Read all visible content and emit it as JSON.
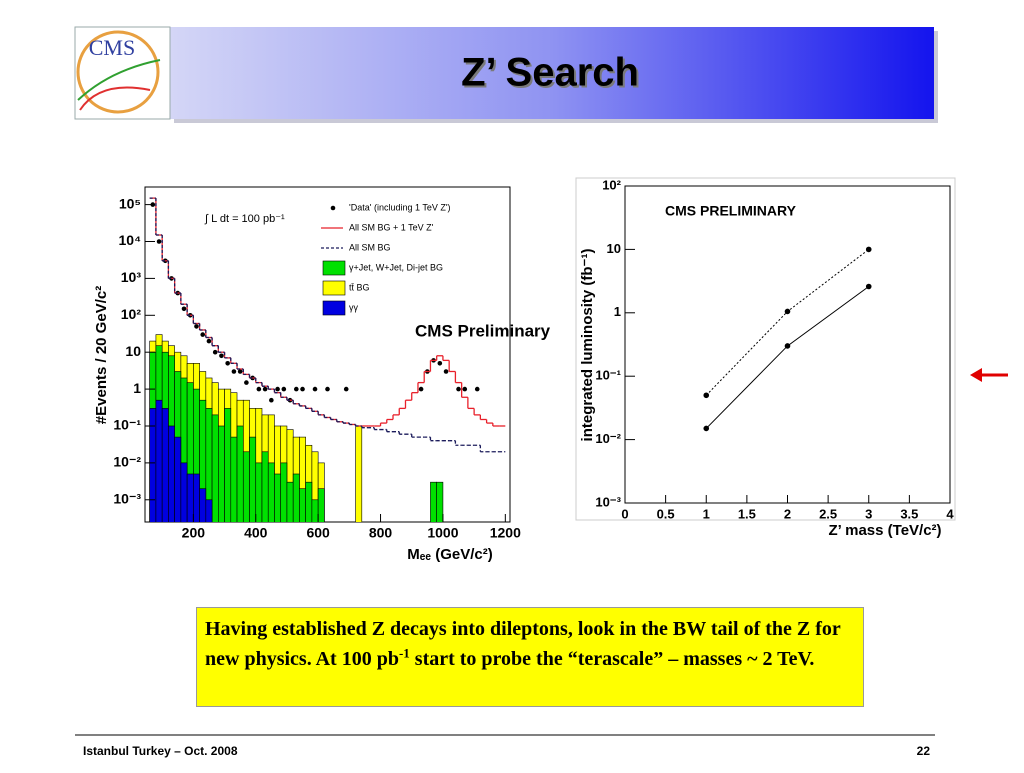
{
  "slide": {
    "title": "Z’ Search",
    "logo_text": "CMS",
    "text": {
      "before": "Having established Z decays into dileptons, look in the BW tail of the Z for new physics. At 100 pb",
      "sup": "-1",
      "after": " start to probe the “terascale” – masses ~ 2 TeV."
    },
    "footer_left": "Istanbul Turkey – Oct. 2008",
    "footer_right": "22"
  },
  "chart_data": [
    {
      "type": "histogram",
      "xlabel": "Mₑₑ (GeV/c²)",
      "ylabel": "#Events / 20 GeV/c²",
      "annotations": [
        "∫ L dt = 100 pb⁻¹",
        "CMS Preliminary"
      ],
      "log_y": true,
      "xlim": [
        45,
        1215
      ],
      "ylim": [
        0.00025,
        300000
      ],
      "xticks": [
        200,
        400,
        600,
        800,
        1000,
        1200
      ],
      "yticks": [
        {
          "value": 0.001,
          "label": "10⁻³"
        },
        {
          "value": 0.01,
          "label": "10⁻²"
        },
        {
          "value": 0.1,
          "label": "10⁻¹"
        },
        1,
        10,
        {
          "value": 100,
          "label": "10²"
        },
        {
          "value": 1000,
          "label": "10³"
        },
        {
          "value": 10000,
          "label": "10⁴"
        },
        {
          "value": 100000,
          "label": "10⁵"
        }
      ],
      "bins": [
        60,
        80,
        100,
        120,
        140,
        160,
        180,
        200,
        220,
        240,
        260,
        280,
        300,
        320,
        340,
        360,
        380,
        400,
        420,
        440,
        460,
        480,
        500,
        520,
        540,
        560,
        580,
        600,
        620,
        640,
        660,
        680,
        700,
        720,
        740,
        760,
        780,
        800,
        820,
        840,
        860,
        880,
        900,
        920,
        940,
        960,
        980,
        1000,
        1020,
        1040,
        1060,
        1080,
        1100,
        1120,
        1140,
        1160,
        1180,
        1200
      ],
      "series": [
        {
          "name": "'Data' (including 1 TeV Z')",
          "style": "points",
          "color": "#000000",
          "x": [
            70,
            90,
            110,
            130,
            150,
            170,
            190,
            210,
            230,
            250,
            270,
            290,
            310,
            330,
            350,
            370,
            390,
            410,
            430,
            450,
            470,
            490,
            510,
            530,
            550,
            590,
            630,
            690,
            930,
            950,
            970,
            990,
            1010,
            1050,
            1070,
            1110
          ],
          "values": [
            100000,
            10000,
            3000,
            1000,
            400,
            150,
            100,
            50,
            30,
            20,
            10,
            8,
            5,
            3,
            3,
            1.5,
            2,
            1,
            1,
            0.5,
            1,
            1,
            0.5,
            1,
            1,
            1,
            1,
            1,
            1,
            3,
            6,
            5,
            3,
            1,
            1,
            1
          ]
        },
        {
          "name": "All SM BG + 1 TeV Z'",
          "style": "step",
          "color": "#e8202a",
          "values": [
            150000,
            15000,
            3000,
            1000,
            400,
            200,
            100,
            60,
            40,
            25,
            15,
            10,
            7,
            5,
            3.5,
            2.5,
            2,
            1.5,
            1.2,
            1,
            0.8,
            0.6,
            0.5,
            0.4,
            0.35,
            0.3,
            0.25,
            0.2,
            0.17,
            0.15,
            0.13,
            0.12,
            0.11,
            0.1,
            0.1,
            0.1,
            0.1,
            0.12,
            0.15,
            0.2,
            0.3,
            0.5,
            0.8,
            1.5,
            3,
            6,
            8,
            6,
            3,
            1.5,
            0.6,
            0.3,
            0.2,
            0.15,
            0.12,
            0.1,
            0.1
          ]
        },
        {
          "name": "All SM BG",
          "style": "dashed",
          "color": "#1a1a5a",
          "values": [
            150000,
            15000,
            3000,
            1000,
            400,
            200,
            100,
            60,
            40,
            25,
            15,
            10,
            7,
            5,
            3.5,
            2.5,
            2,
            1.5,
            1.2,
            1,
            0.8,
            0.6,
            0.5,
            0.4,
            0.35,
            0.3,
            0.25,
            0.2,
            0.17,
            0.15,
            0.13,
            0.12,
            0.11,
            0.1,
            0.09,
            0.09,
            0.08,
            0.08,
            0.07,
            0.07,
            0.06,
            0.06,
            0.05,
            0.05,
            0.05,
            0.04,
            0.04,
            0.04,
            0.04,
            0.03,
            0.03,
            0.03,
            0.03,
            0.02,
            0.02,
            0.02,
            0.02
          ]
        },
        {
          "name": "γ+Jet, W+Jet, Di-jet BG",
          "style": "fill",
          "color": "#00e000",
          "values": [
            10,
            15,
            10,
            8,
            3,
            2,
            1.5,
            1,
            0.5,
            0.3,
            0.2,
            0.1,
            0.3,
            0.05,
            0.1,
            0.02,
            0.05,
            0.01,
            0.02,
            0.01,
            0.005,
            0.01,
            0.003,
            0.005,
            0.002,
            0.003,
            0.001,
            0.002,
            null,
            null,
            null,
            null,
            null,
            null,
            null,
            null,
            null,
            null,
            null,
            null,
            null,
            null,
            null,
            null,
            null,
            0.003,
            0.003,
            null,
            null,
            null,
            null,
            null,
            null,
            null,
            null,
            null,
            null
          ]
        },
        {
          "name": "tt̄ BG",
          "style": "fill",
          "color": "#ffff00",
          "values": [
            20,
            30,
            20,
            15,
            10,
            8,
            5,
            5,
            3,
            2,
            1.5,
            1,
            1,
            0.8,
            0.5,
            0.5,
            0.3,
            0.3,
            0.2,
            0.2,
            0.1,
            0.1,
            0.08,
            0.05,
            0.05,
            0.03,
            0.02,
            0.01,
            null,
            null,
            null,
            null,
            null,
            0.1,
            null,
            null,
            null,
            null,
            null,
            null,
            null,
            null,
            null,
            null,
            null,
            null,
            null,
            null,
            null,
            null,
            null,
            null,
            null,
            null,
            null,
            null,
            null
          ]
        },
        {
          "name": "γγ",
          "style": "fill",
          "color": "#0000e0",
          "values": [
            0.3,
            0.5,
            0.3,
            0.1,
            0.05,
            0.01,
            0.005,
            0.005,
            0.002,
            0.001,
            null,
            null,
            null,
            null,
            null,
            null,
            null,
            null,
            null,
            null,
            null,
            null,
            null,
            null,
            null,
            null,
            null,
            null,
            null,
            null,
            null,
            null,
            null,
            null,
            null,
            null,
            null,
            null,
            null,
            null,
            null,
            null,
            null,
            null,
            null,
            null,
            null,
            null,
            null,
            null,
            null,
            null,
            null,
            null,
            null,
            null,
            null
          ]
        }
      ]
    },
    {
      "type": "line",
      "xlabel": "Z’ mass (TeV/c²)",
      "ylabel": "integrated luminosity (fb⁻¹)",
      "annotations": [
        "CMS PRELIMINARY"
      ],
      "log_y": true,
      "xlim": [
        0,
        4
      ],
      "ylim": [
        0.001,
        100
      ],
      "xticks": [
        0,
        0.5,
        1,
        1.5,
        2,
        2.5,
        3,
        3.5,
        4
      ],
      "yticks": [
        {
          "value": 0.001,
          "label": "10⁻³"
        },
        {
          "value": 0.01,
          "label": "10⁻²"
        },
        {
          "value": 0.1,
          "label": "10⁻¹"
        },
        1,
        10,
        {
          "value": 100,
          "label": "10²"
        }
      ],
      "series": [
        {
          "style": "dotted",
          "color": "#000000",
          "x": [
            1,
            2,
            3
          ],
          "values": [
            0.05,
            1.05,
            10
          ]
        },
        {
          "style": "solid",
          "color": "#000000",
          "x": [
            1,
            2,
            3
          ],
          "values": [
            0.015,
            0.3,
            2.6
          ]
        }
      ]
    }
  ]
}
